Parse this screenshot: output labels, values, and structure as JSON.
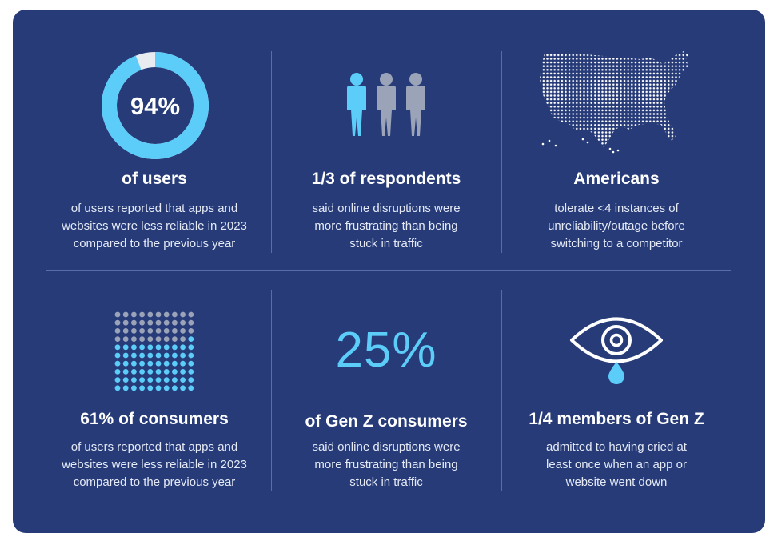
{
  "colors": {
    "background": "#263b78",
    "accent": "#5ccdf9",
    "muted": "#9aa3b8",
    "text": "#ffffff",
    "divider": "#5a6da8"
  },
  "stats": [
    {
      "heading": "of users",
      "graphic": "donut-chart",
      "value_label": "94%",
      "value": 94,
      "desc": [
        "of users reported that apps and",
        "websites were less reliable in 2023",
        "compared to the previous year"
      ]
    },
    {
      "heading": "1/3 of respondents",
      "graphic": "people-icon",
      "highlighted": 1,
      "total": 3,
      "desc": [
        "said online disruptions were",
        "more frustrating than being",
        "stuck in traffic"
      ]
    },
    {
      "heading": "Americans",
      "graphic": "us-map-icon",
      "desc": [
        "tolerate <4 instances of",
        "unreliability/outage before",
        "switching to a competitor"
      ]
    },
    {
      "heading": "61% of consumers",
      "graphic": "dot-grid-chart",
      "highlighted_dots": 61,
      "total_dots": 100,
      "desc": [
        "of users reported that apps and",
        "websites were less reliable in 2023",
        "compared to the previous year"
      ]
    },
    {
      "heading": "of Gen Z consumers",
      "graphic": "big-number",
      "value_label": "25%",
      "desc": [
        "said online disruptions were",
        "more frustrating than being",
        "stuck in traffic"
      ]
    },
    {
      "heading": "1/4 members of Gen Z",
      "graphic": "crying-eye-icon",
      "desc": [
        "admitted to having cried at",
        "least once when an app or",
        "website went down"
      ]
    }
  ]
}
